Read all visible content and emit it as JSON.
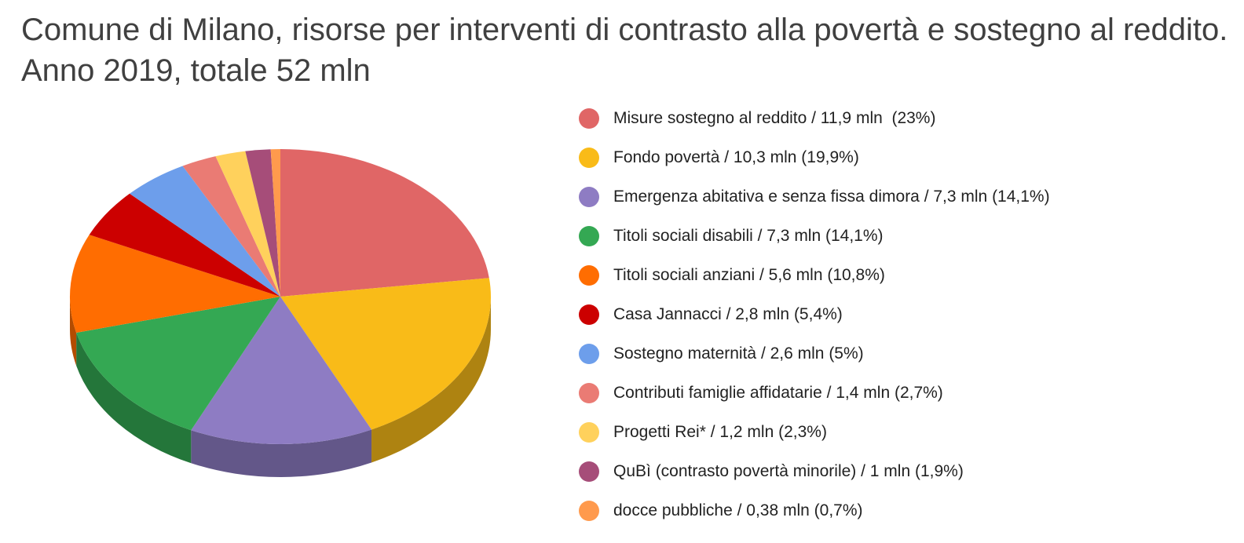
{
  "chart_data": {
    "type": "pie",
    "title": "Comune di Milano, risorse per interventi di contrasto alla povertà e sostegno al reddito. Anno 2019, totale 52 mln",
    "legend_position": "right",
    "style": "3d",
    "slices": [
      {
        "label": "Misure sostegno al reddito / 11,9 mln  (23%)",
        "value": 11.9,
        "percent": 23,
        "color": "#e06666"
      },
      {
        "label": "Fondo povertà / 10,3 mln (19,9%)",
        "value": 10.3,
        "percent": 19.9,
        "color": "#f9bb18"
      },
      {
        "label": "Emergenza abitativa e senza fissa dimora / 7,3 mln (14,1%)",
        "value": 7.3,
        "percent": 14.1,
        "color": "#8e7cc3"
      },
      {
        "label": "Titoli sociali disabili / 7,3 mln (14,1%)",
        "value": 7.3,
        "percent": 14.1,
        "color": "#34a853"
      },
      {
        "label": "Titoli sociali anziani / 5,6 mln (10,8%)",
        "value": 5.6,
        "percent": 10.8,
        "color": "#ff6d01"
      },
      {
        "label": "Casa Jannacci / 2,8 mln (5,4%)",
        "value": 2.8,
        "percent": 5.4,
        "color": "#cc0000"
      },
      {
        "label": "Sostegno maternità / 2,6 mln (5%)",
        "value": 2.6,
        "percent": 5,
        "color": "#6d9eeb"
      },
      {
        "label": "Contributi famiglie affidatarie / 1,4 mln (2,7%)",
        "value": 1.4,
        "percent": 2.7,
        "color": "#ea7b74"
      },
      {
        "label": "Progetti Rei* / 1,2 mln (2,3%)",
        "value": 1.2,
        "percent": 2.3,
        "color": "#ffd15c"
      },
      {
        "label": "QuBì (contrasto povertà minorile) / 1 mln (1,9%)",
        "value": 1.0,
        "percent": 1.9,
        "color": "#a64d79"
      },
      {
        "label": "docce pubbliche / 0,38 mln (0,7%)",
        "value": 0.38,
        "percent": 0.7,
        "color": "#ff9a4d"
      }
    ]
  }
}
